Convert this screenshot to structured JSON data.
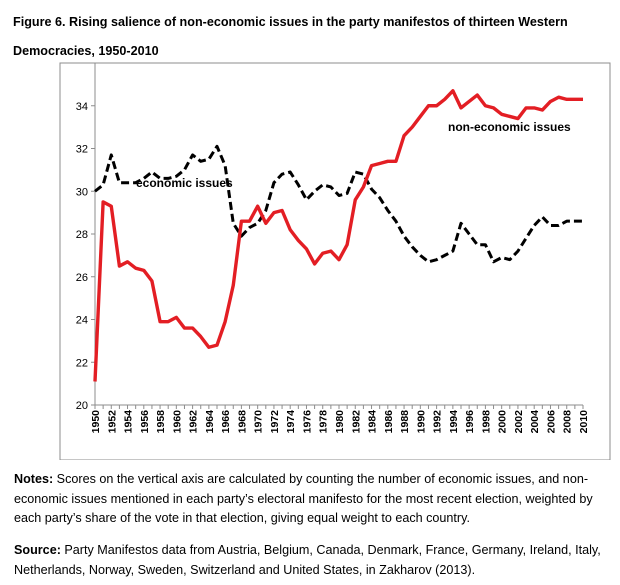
{
  "title_line1": "Figure 6. Rising salience of non-economic issues in the party manifestos of thirteen Western",
  "title_line2": "Democracies, 1950-2010",
  "chart_data": {
    "type": "line",
    "title": "Rising salience of non-economic issues in the party manifestos of thirteen Western Democracies, 1950-2010",
    "xlabel": "",
    "ylabel": "",
    "ylim": [
      20,
      36
    ],
    "yticks": [
      20,
      22,
      24,
      26,
      28,
      30,
      32,
      34
    ],
    "x": [
      1950,
      1951,
      1952,
      1953,
      1954,
      1955,
      1956,
      1957,
      1958,
      1959,
      1960,
      1961,
      1962,
      1963,
      1964,
      1965,
      1966,
      1967,
      1968,
      1969,
      1970,
      1971,
      1972,
      1973,
      1974,
      1975,
      1976,
      1977,
      1978,
      1979,
      1980,
      1981,
      1982,
      1983,
      1984,
      1985,
      1986,
      1987,
      1988,
      1989,
      1990,
      1991,
      1992,
      1993,
      1994,
      1995,
      1996,
      1997,
      1998,
      1999,
      2000,
      2001,
      2002,
      2003,
      2004,
      2005,
      2006,
      2007,
      2008,
      2009,
      2010
    ],
    "xtick_labels": [
      "1950",
      "1952",
      "1954",
      "1956",
      "1958",
      "1960",
      "1962",
      "1964",
      "1966",
      "1968",
      "1970",
      "1972",
      "1974",
      "1976",
      "1978",
      "1980",
      "1982",
      "1984",
      "1986",
      "1988",
      "1990",
      "1992",
      "1994",
      "1996",
      "1998",
      "2000",
      "2002",
      "2004",
      "2006",
      "2008",
      "2010"
    ],
    "series": [
      {
        "name": "economic issues",
        "label": "economic issues",
        "color": "#000000",
        "dash": true,
        "values": [
          30.0,
          30.3,
          31.7,
          30.4,
          30.4,
          30.4,
          30.6,
          30.9,
          30.6,
          30.6,
          30.7,
          31.0,
          31.7,
          31.4,
          31.5,
          32.1,
          31.2,
          28.5,
          27.9,
          28.3,
          28.5,
          29.1,
          30.4,
          30.8,
          30.9,
          30.3,
          29.6,
          30.0,
          30.3,
          30.2,
          29.8,
          29.9,
          30.9,
          30.8,
          30.1,
          29.7,
          29.1,
          28.6,
          27.9,
          27.4,
          27.0,
          26.7,
          26.8,
          27.0,
          27.2,
          28.5,
          28.0,
          27.5,
          27.5,
          26.7,
          26.9,
          26.8,
          27.2,
          27.8,
          28.4,
          28.8,
          28.4,
          28.4,
          28.6,
          28.6,
          28.6
        ]
      },
      {
        "name": "non-economic issues",
        "label": "non-economic issues",
        "color": "#e31e24",
        "dash": false,
        "values": [
          21.1,
          29.5,
          29.3,
          26.5,
          26.7,
          26.4,
          26.3,
          25.8,
          23.9,
          23.9,
          24.1,
          23.6,
          23.6,
          23.2,
          22.7,
          22.8,
          23.9,
          25.6,
          28.6,
          28.6,
          29.3,
          28.5,
          29.0,
          29.1,
          28.2,
          27.7,
          27.3,
          26.6,
          27.1,
          27.2,
          26.8,
          27.5,
          29.6,
          30.2,
          31.2,
          31.3,
          31.4,
          31.4,
          32.6,
          33.0,
          33.5,
          34.0,
          34.0,
          34.3,
          34.7,
          33.9,
          34.2,
          34.5,
          34.0,
          33.9,
          33.6,
          33.5,
          33.4,
          33.9,
          33.9,
          33.8,
          34.2,
          34.4,
          34.3,
          34.3,
          34.3
        ]
      }
    ]
  },
  "notes_label": "Notes:",
  "notes_text": " Scores on the vertical axis are calculated by counting the number of economic issues, and non-economic issues mentioned in each party’s electoral manifesto for the most recent election, weighted by each party’s share of the vote in that election, giving equal weight to each country.",
  "source_label": "Source:",
  "source_text": " Party Manifestos data from Austria, Belgium, Canada, Denmark, France, Germany, Ireland, Italy, Netherlands, Norway, Sweden, Switzerland and United States, in Zakharov (2013)."
}
